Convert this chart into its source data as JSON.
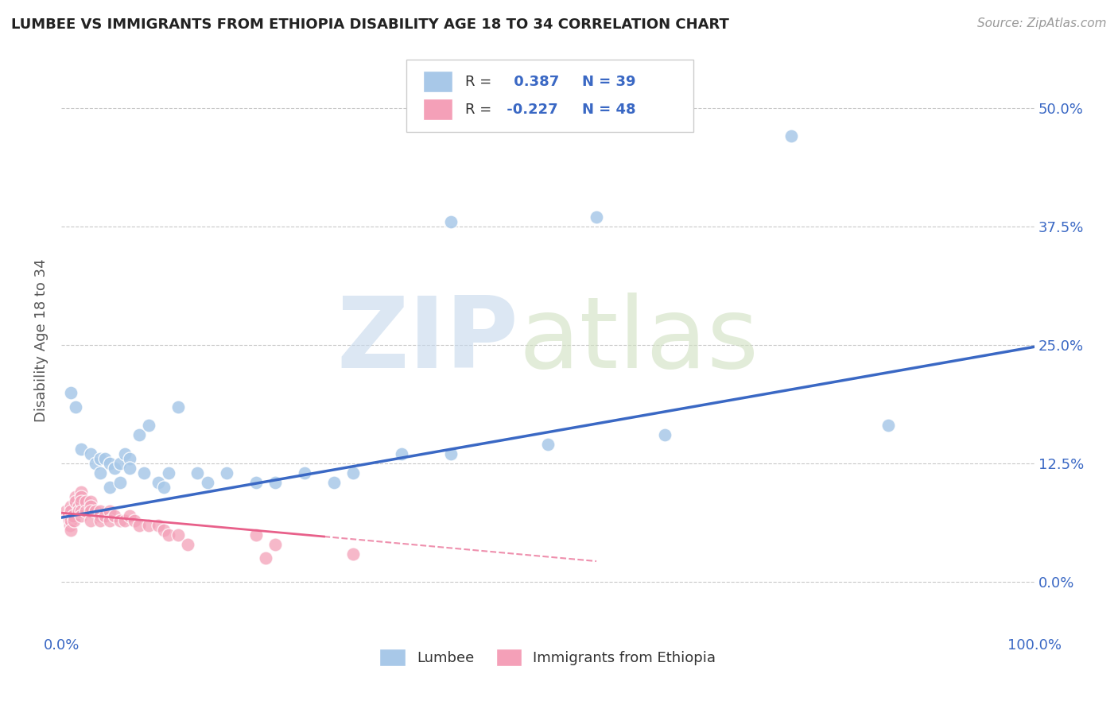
{
  "title": "LUMBEE VS IMMIGRANTS FROM ETHIOPIA DISABILITY AGE 18 TO 34 CORRELATION CHART",
  "source": "Source: ZipAtlas.com",
  "ylabel": "Disability Age 18 to 34",
  "xlim": [
    0.0,
    1.0
  ],
  "ylim": [
    -0.05,
    0.56
  ],
  "yticks": [
    0.0,
    0.125,
    0.25,
    0.375,
    0.5
  ],
  "ytick_labels": [
    "0.0%",
    "12.5%",
    "25.0%",
    "37.5%",
    "50.0%"
  ],
  "xticks": [
    0.0,
    1.0
  ],
  "xtick_labels": [
    "0.0%",
    "100.0%"
  ],
  "lumbee_R": 0.387,
  "lumbee_N": 39,
  "ethiopia_R": -0.227,
  "ethiopia_N": 48,
  "lumbee_color": "#a8c8e8",
  "ethiopia_color": "#f4a0b8",
  "lumbee_line_color": "#3a68c4",
  "ethiopia_line_color": "#e8608a",
  "background_color": "#ffffff",
  "grid_color": "#bbbbbb",
  "lumbee_x": [
    0.01,
    0.015,
    0.02,
    0.03,
    0.035,
    0.04,
    0.04,
    0.045,
    0.05,
    0.05,
    0.055,
    0.06,
    0.06,
    0.065,
    0.07,
    0.07,
    0.08,
    0.085,
    0.09,
    0.1,
    0.105,
    0.11,
    0.12,
    0.14,
    0.15,
    0.17,
    0.2,
    0.22,
    0.25,
    0.28,
    0.3,
    0.35,
    0.4,
    0.5,
    0.55,
    0.62,
    0.75,
    0.85,
    0.4
  ],
  "lumbee_y": [
    0.2,
    0.185,
    0.14,
    0.135,
    0.125,
    0.13,
    0.115,
    0.13,
    0.125,
    0.1,
    0.12,
    0.125,
    0.105,
    0.135,
    0.13,
    0.12,
    0.155,
    0.115,
    0.165,
    0.105,
    0.1,
    0.115,
    0.185,
    0.115,
    0.105,
    0.115,
    0.105,
    0.105,
    0.115,
    0.105,
    0.115,
    0.135,
    0.135,
    0.145,
    0.385,
    0.155,
    0.47,
    0.165,
    0.38
  ],
  "ethiopia_x": [
    0.005,
    0.007,
    0.008,
    0.009,
    0.01,
    0.01,
    0.01,
    0.01,
    0.012,
    0.013,
    0.015,
    0.015,
    0.018,
    0.018,
    0.02,
    0.02,
    0.02,
    0.02,
    0.02,
    0.025,
    0.025,
    0.03,
    0.03,
    0.03,
    0.03,
    0.035,
    0.04,
    0.04,
    0.04,
    0.045,
    0.05,
    0.05,
    0.055,
    0.06,
    0.065,
    0.07,
    0.075,
    0.08,
    0.09,
    0.1,
    0.105,
    0.11,
    0.12,
    0.13,
    0.2,
    0.21,
    0.3,
    0.22
  ],
  "ethiopia_y": [
    0.075,
    0.07,
    0.065,
    0.06,
    0.08,
    0.075,
    0.065,
    0.055,
    0.07,
    0.065,
    0.09,
    0.085,
    0.08,
    0.075,
    0.095,
    0.09,
    0.085,
    0.075,
    0.07,
    0.085,
    0.075,
    0.085,
    0.08,
    0.075,
    0.065,
    0.075,
    0.075,
    0.07,
    0.065,
    0.07,
    0.075,
    0.065,
    0.07,
    0.065,
    0.065,
    0.07,
    0.065,
    0.06,
    0.06,
    0.06,
    0.055,
    0.05,
    0.05,
    0.04,
    0.05,
    0.025,
    0.03,
    0.04
  ],
  "lumbee_line_x0": 0.0,
  "lumbee_line_y0": 0.068,
  "lumbee_line_x1": 1.0,
  "lumbee_line_y1": 0.248,
  "ethiopia_line_solid_x0": 0.0,
  "ethiopia_line_solid_y0": 0.073,
  "ethiopia_line_solid_x1": 0.27,
  "ethiopia_line_solid_y1": 0.048,
  "ethiopia_line_dash_x0": 0.27,
  "ethiopia_line_dash_y0": 0.048,
  "ethiopia_line_dash_x1": 0.55,
  "ethiopia_line_dash_y1": 0.022
}
